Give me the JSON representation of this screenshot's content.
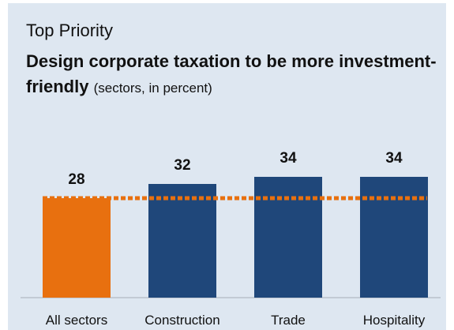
{
  "kicker": "Top Priority",
  "headline": "Design corporate taxation to be more investment-friendly",
  "subtitle": "(sectors, in percent)",
  "colors": {
    "panel": "#dee7f1",
    "highlight": "#e8700f",
    "bar": "#1f477a",
    "reference_line": "#e8700f",
    "baseline": "#b9c1cb",
    "text": "#111111"
  },
  "chart_data": {
    "type": "bar",
    "categories": [
      "All sectors",
      "Construction",
      "Trade",
      "Hospitality"
    ],
    "values": [
      28,
      32,
      34,
      34
    ],
    "highlight_category": "All sectors",
    "reference_line": {
      "value": 28,
      "style": "dotted"
    },
    "ylim": [
      0,
      40
    ],
    "data_labels": true,
    "legend": "none",
    "grid": false
  }
}
